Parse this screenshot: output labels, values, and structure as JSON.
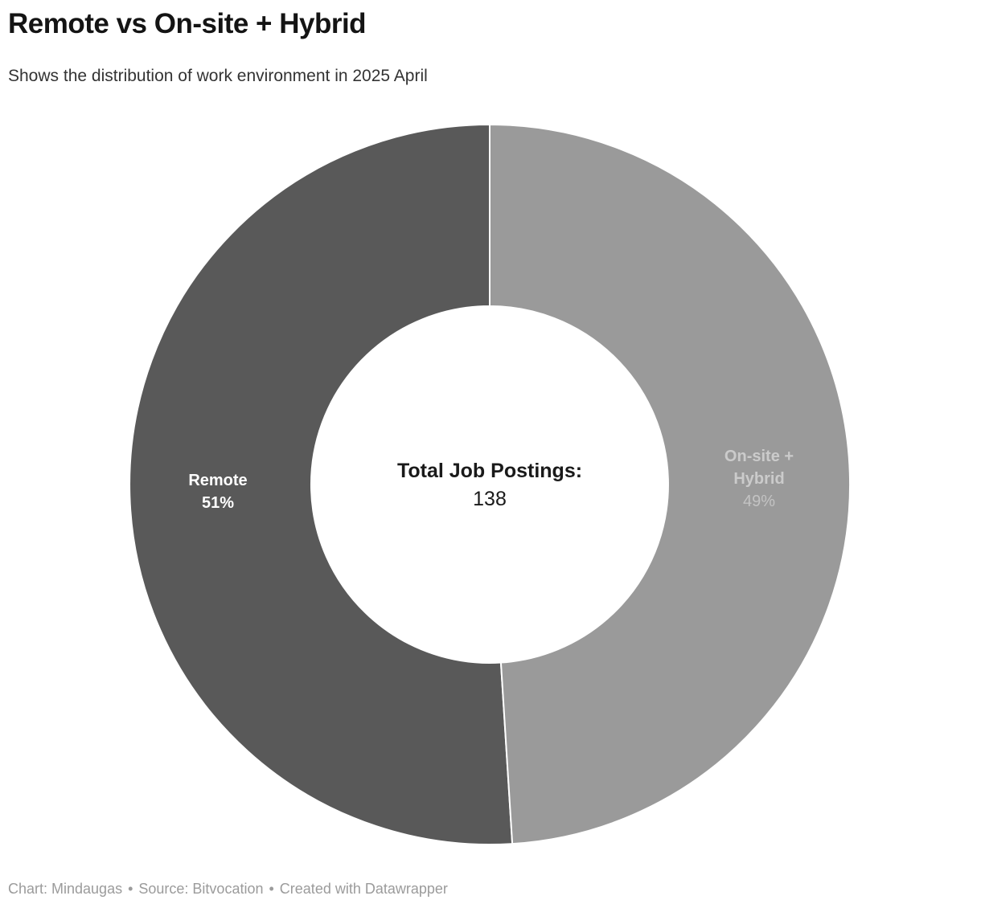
{
  "header": {
    "title": "Remote vs On-site + Hybrid",
    "subtitle": "Shows the distribution of work environment in 2025 April"
  },
  "chart_data": {
    "type": "pie",
    "subtype": "donut",
    "title": "Remote vs On-site + Hybrid",
    "subtitle": "Shows the distribution of work environment in 2025 April",
    "categories": [
      "Remote",
      "On-site + Hybrid"
    ],
    "values": [
      51,
      49
    ],
    "value_unit": "percent",
    "colors": [
      "#595959",
      "#9a9a9a"
    ],
    "layout": {
      "start_angle": "12 o'clock",
      "arrangement": "Remote fills the left half (51%), On-site + Hybrid fills the right half (49%)",
      "slice_separator_color": "#ffffff",
      "legend": "none (labels placed inside slices)"
    },
    "center_label": {
      "title": "Total Job Postings:",
      "value": "138"
    },
    "labels": {
      "remote": {
        "name": "Remote",
        "pct": "51%"
      },
      "onsite": {
        "name": "On-site + Hybrid",
        "pct": "49%"
      }
    }
  },
  "footer": {
    "chart": "Chart: Mindaugas",
    "source": "Source: Bitvocation",
    "tool": "Created with Datawrapper",
    "separator": "•"
  }
}
